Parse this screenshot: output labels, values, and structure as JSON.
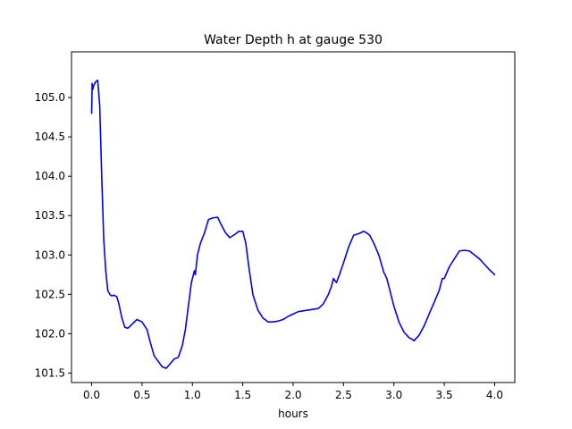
{
  "chart_data": {
    "type": "line",
    "title": "Water Depth h at gauge 530",
    "xlabel": "hours",
    "ylabel": "",
    "xlim": [
      -0.2,
      4.2
    ],
    "ylim": [
      101.38,
      105.58
    ],
    "grid": false,
    "xticks": [
      0.0,
      0.5,
      1.0,
      1.5,
      2.0,
      2.5,
      3.0,
      3.5,
      4.0
    ],
    "xtick_labels": [
      "0.0",
      "0.5",
      "1.0",
      "1.5",
      "2.0",
      "2.5",
      "3.0",
      "3.5",
      "4.0"
    ],
    "yticks": [
      101.5,
      102.0,
      102.5,
      103.0,
      103.5,
      104.0,
      104.5,
      105.0
    ],
    "ytick_labels": [
      "101.5",
      "102.0",
      "102.5",
      "103.0",
      "103.5",
      "104.0",
      "104.5",
      "105.0"
    ],
    "line_color": "#0000ff",
    "series": [
      {
        "x": [
          0.0,
          0.005,
          0.01,
          0.02,
          0.04,
          0.06,
          0.08,
          0.1,
          0.12,
          0.14,
          0.16,
          0.18,
          0.2,
          0.22,
          0.25,
          0.27,
          0.3,
          0.33,
          0.36,
          0.4,
          0.45,
          0.5,
          0.55,
          0.58,
          0.62,
          0.66,
          0.7,
          0.74,
          0.78,
          0.82,
          0.86,
          0.9,
          0.93,
          0.96,
          0.99,
          1.02,
          1.03,
          1.05,
          1.08,
          1.12,
          1.16,
          1.2,
          1.25,
          1.28,
          1.3,
          1.33,
          1.37,
          1.42,
          1.46,
          1.5,
          1.53,
          1.56,
          1.6,
          1.65,
          1.7,
          1.75,
          1.8,
          1.85,
          1.9,
          1.95,
          2.0,
          2.05,
          2.1,
          2.15,
          2.2,
          2.25,
          2.3,
          2.35,
          2.38,
          2.4,
          2.43,
          2.46,
          2.5,
          2.55,
          2.6,
          2.65,
          2.7,
          2.73,
          2.76,
          2.8,
          2.85,
          2.9,
          2.93,
          2.95,
          3.0,
          3.05,
          3.1,
          3.15,
          3.18,
          3.2,
          3.22,
          3.25,
          3.3,
          3.35,
          3.4,
          3.45,
          3.48,
          3.5,
          3.55,
          3.6,
          3.65,
          3.7,
          3.75,
          3.8,
          3.85,
          3.9,
          3.95,
          4.0
        ],
        "y": [
          104.8,
          105.18,
          105.1,
          105.15,
          105.2,
          105.22,
          104.9,
          104.0,
          103.2,
          102.8,
          102.55,
          102.5,
          102.48,
          102.49,
          102.47,
          102.38,
          102.2,
          102.08,
          102.07,
          102.12,
          102.18,
          102.15,
          102.05,
          101.9,
          101.72,
          101.65,
          101.58,
          101.56,
          101.62,
          101.68,
          101.7,
          101.85,
          102.05,
          102.35,
          102.65,
          102.8,
          102.75,
          103.0,
          103.15,
          103.28,
          103.45,
          103.47,
          103.48,
          103.4,
          103.35,
          103.28,
          103.22,
          103.26,
          103.3,
          103.3,
          103.15,
          102.85,
          102.5,
          102.3,
          102.2,
          102.15,
          102.15,
          102.16,
          102.18,
          102.22,
          102.25,
          102.28,
          102.29,
          102.3,
          102.31,
          102.32,
          102.38,
          102.5,
          102.6,
          102.7,
          102.65,
          102.75,
          102.9,
          103.1,
          103.25,
          103.27,
          103.3,
          103.28,
          103.25,
          103.15,
          103.0,
          102.78,
          102.7,
          102.6,
          102.35,
          102.15,
          102.02,
          101.95,
          101.93,
          101.91,
          101.94,
          101.98,
          102.1,
          102.25,
          102.4,
          102.55,
          102.7,
          102.7,
          102.85,
          102.95,
          103.05,
          103.06,
          103.05,
          103.0,
          102.95,
          102.88,
          102.81,
          102.75
        ]
      }
    ]
  }
}
